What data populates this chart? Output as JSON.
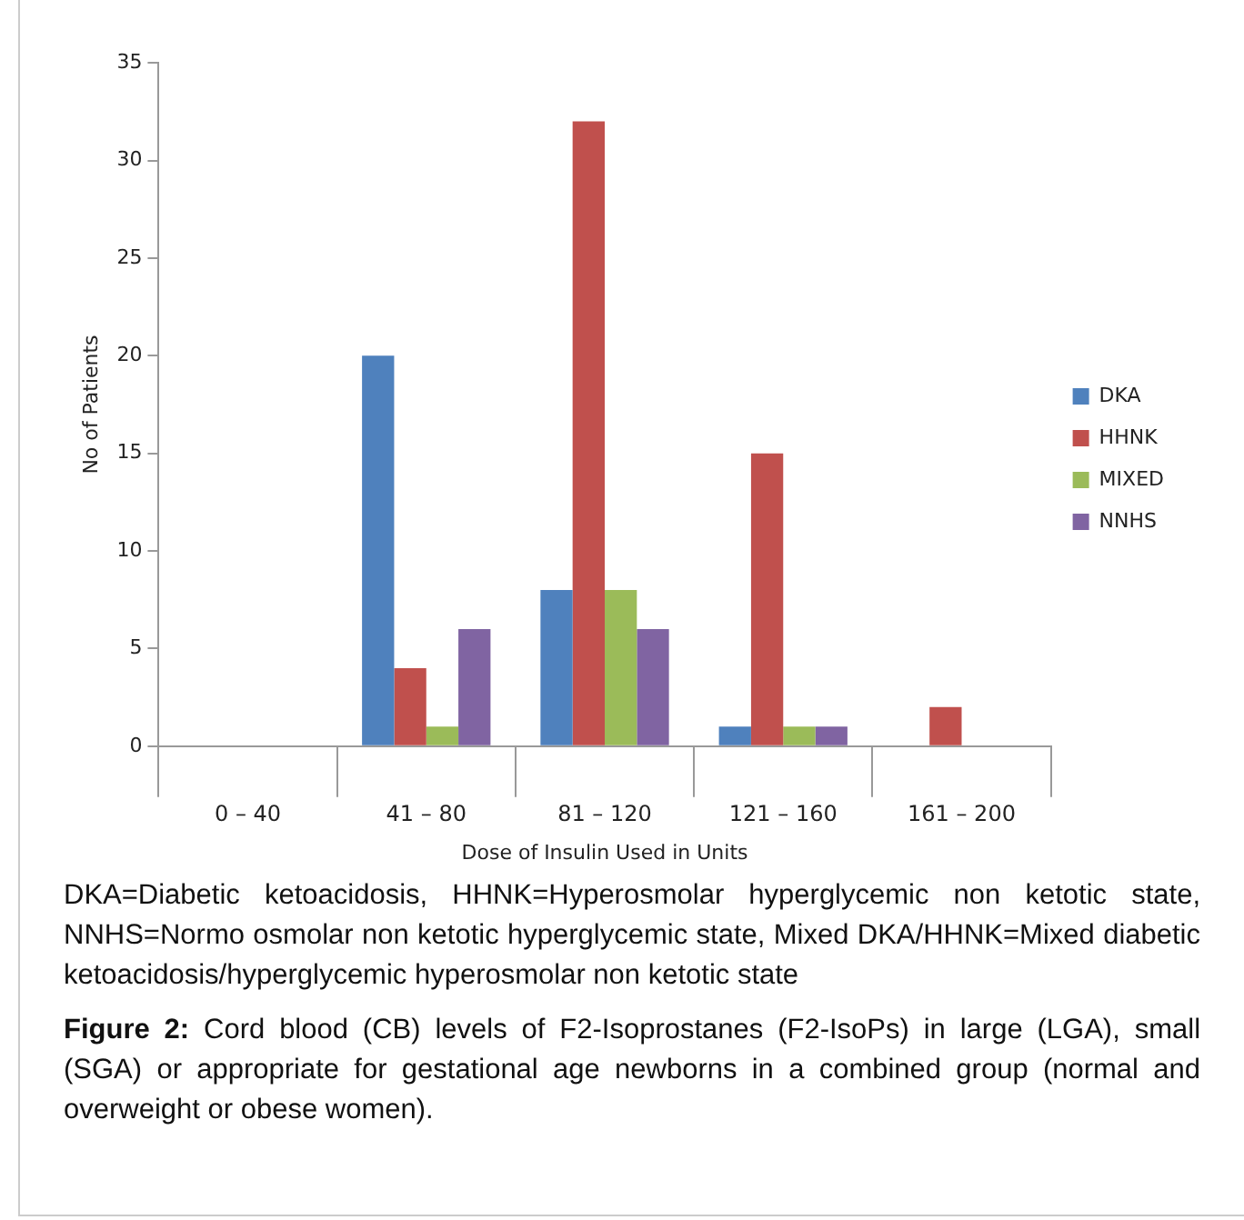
{
  "chart_data": {
    "type": "bar",
    "xlabel": "Dose of Insulin Used in Units",
    "ylabel": "No of Patients",
    "categories": [
      "0 – 40",
      "41 – 80",
      "81 – 120",
      "121 – 160",
      "161 – 200"
    ],
    "series": [
      {
        "name": "DKA",
        "color": "#4f81bd",
        "values": [
          0,
          20,
          8,
          1,
          0
        ]
      },
      {
        "name": "HHNK",
        "color": "#c0504d",
        "values": [
          0,
          4,
          32,
          15,
          2
        ]
      },
      {
        "name": "MIXED",
        "color": "#9bbb59",
        "values": [
          0,
          1,
          8,
          1,
          0
        ]
      },
      {
        "name": "NNHS",
        "color": "#8064a2",
        "values": [
          0,
          6,
          6,
          1,
          0
        ]
      }
    ],
    "ylim": [
      0,
      35
    ],
    "yticks": [
      0,
      5,
      10,
      15,
      20,
      25,
      30,
      35
    ],
    "grid": false,
    "legend": "right",
    "annotations": [
      "DKA=Diabetic ketoacidosis, HHNK=Hyperosmolar hyperglycemic non ketotic state, NNHS=Normo osmolar non ketotic hyperglycemic state, Mixed DKA/HHNK=Mixed diabetic ketoacidosis/hyperglycemic hyperosmolar non ketotic state",
      "Figure 2: Cord blood (CB) levels of F2-Isoprostanes (F2-IsoPs) in large (LGA), small (SGA) or appropriate for gestational age newborns in a combined group (normal and overweight or obese women)."
    ]
  }
}
